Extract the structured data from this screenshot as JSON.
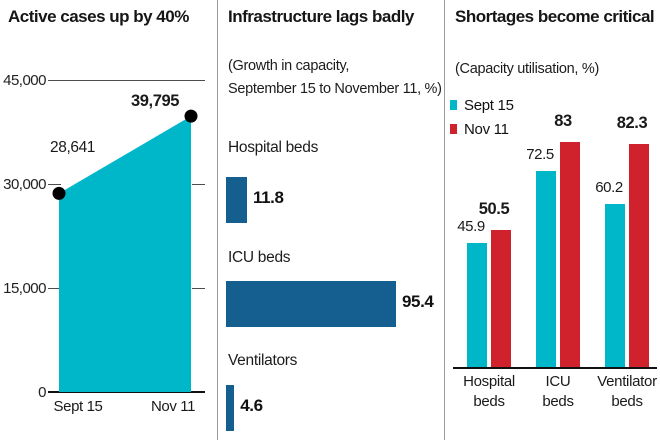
{
  "panels": [
    {
      "id": "active-cases",
      "title": "Active cases up by 40%"
    },
    {
      "id": "infrastructure",
      "title": "Infrastructure lags badly",
      "subtitle": "(Growth in capacity,\nSeptember 15 to November 11, %)"
    },
    {
      "id": "shortages",
      "title": "Shortages become critical",
      "subtitle": "(Capacity utilisation, %)"
    }
  ],
  "colors": {
    "cyan": "#00b6c9",
    "dark_blue": "#145f8f",
    "red": "#d0222c",
    "axis": "#111111",
    "grid": "#4d4d4d",
    "divider": "#9a9a9a",
    "dot": "#000000"
  },
  "chart_data": [
    {
      "type": "area",
      "title": "Active cases up by 40%",
      "x": [
        "Sept 15",
        "Nov 11"
      ],
      "values": [
        28641,
        39795
      ],
      "value_labels": [
        "28,641",
        "39,795"
      ],
      "ylim": [
        0,
        45000
      ],
      "yticks": [
        {
          "value": 45000,
          "label": "45,000"
        },
        {
          "value": 30000,
          "label": "30,000"
        },
        {
          "value": 15000,
          "label": "15,000"
        },
        {
          "value": 0,
          "label": "0"
        }
      ],
      "grid": "horizontal",
      "color": "#00b6c9",
      "point_marker": "black-dot"
    },
    {
      "type": "bar",
      "orientation": "horizontal",
      "title": "Infrastructure lags badly",
      "subtitle": "(Growth in capacity, September 15 to November 11, %)",
      "categories": [
        "Hospital beds",
        "ICU beds",
        "Ventilators"
      ],
      "values": [
        11.8,
        95.4,
        4.6
      ],
      "value_labels": [
        "11.8",
        "95.4",
        "4.6"
      ],
      "xlim": [
        0,
        100
      ],
      "color": "#145f8f"
    },
    {
      "type": "bar",
      "grouped": true,
      "title": "Shortages become critical",
      "subtitle": "(Capacity utilisation, %)",
      "categories": [
        "Hospital beds",
        "ICU beds",
        "Ventilator beds"
      ],
      "series": [
        {
          "name": "Sept 15",
          "color": "#00b6c9",
          "values": [
            45.9,
            72.5,
            60.2
          ],
          "value_labels": [
            "45.9",
            "72.5",
            "60.2"
          ]
        },
        {
          "name": "Nov 11",
          "color": "#d0222c",
          "values": [
            50.5,
            83,
            82.3
          ],
          "value_labels": [
            "50.5",
            "83",
            "82.3"
          ]
        }
      ],
      "ylim": [
        0,
        100
      ],
      "legend_position": "top-left"
    }
  ]
}
